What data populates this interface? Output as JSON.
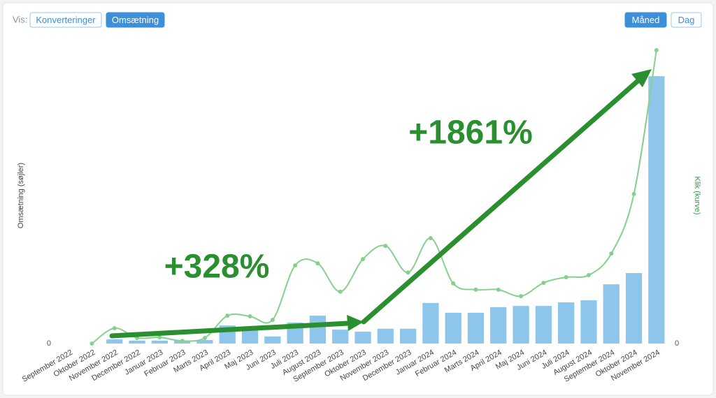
{
  "ui": {
    "view_label": "Vis:",
    "view_buttons": [
      "Konverteringer",
      "Omsætning"
    ],
    "view_active": 1,
    "period_buttons": [
      "Måned",
      "Dag"
    ],
    "period_active": 0
  },
  "chart_data": {
    "type": "bar_line",
    "ylabel": "Omsætning (søjler)",
    "y2label": "Klik (kurve)",
    "categories": [
      "September 2022",
      "Oktober 2022",
      "November 2022",
      "December 2022",
      "Januar 2023",
      "Februar 2023",
      "Marts 2023",
      "April 2023",
      "Maj 2023",
      "Juni 2023",
      "Juli 2023",
      "August 2023",
      "September 2023",
      "Oktober 2023",
      "November 2023",
      "December 2023",
      "Januar 2024",
      "Februar 2024",
      "Marts 2024",
      "April 2024",
      "Maj 2024",
      "Juni 2024",
      "Juli 2024",
      "August 2024",
      "September 2024",
      "Oktober 2024",
      "November 2024"
    ],
    "series": [
      {
        "name": "Omsætning",
        "type": "bar",
        "color": "#8ec5ea",
        "axis": "y",
        "values": [
          0,
          0,
          1.4,
          1,
          1,
          1,
          1.2,
          6.1,
          4.7,
          2.4,
          7.1,
          9.4,
          4.7,
          4.0,
          5.0,
          5.0,
          13.7,
          10.4,
          10.4,
          12.3,
          12.7,
          12.7,
          13.9,
          14.6,
          20,
          23.8,
          90.3
        ]
      },
      {
        "name": "Klik",
        "type": "line",
        "color": "#86d08f",
        "axis": "y2",
        "values": [
          null,
          0,
          5.2,
          1.9,
          2.1,
          0.9,
          1.9,
          9.4,
          9.2,
          8,
          26.4,
          27.1,
          17.5,
          28.5,
          33,
          24,
          35.6,
          20.3,
          18.2,
          18.2,
          16,
          20.5,
          22.4,
          23.1,
          30.4,
          50.5,
          99.1
        ]
      }
    ],
    "ylim": [
      0,
      100
    ],
    "yticks": [
      0
    ],
    "y2lim": [
      0,
      100
    ],
    "y2ticks": [
      0
    ],
    "grid": true,
    "annotations": [
      "+328%",
      "+1861%"
    ]
  }
}
